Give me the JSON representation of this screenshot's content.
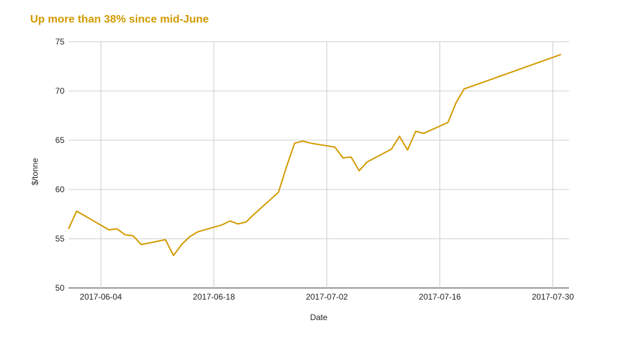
{
  "chart_data": {
    "type": "line",
    "title": "Up more than 38% since mid-June",
    "xlabel": "Date",
    "ylabel": "$/tonne",
    "xlim": [
      "2017-05-31",
      "2017-08-01"
    ],
    "ylim": [
      50,
      75
    ],
    "yticks": [
      50,
      55,
      60,
      65,
      70,
      75
    ],
    "xticks": [
      "2017-06-04",
      "2017-06-18",
      "2017-07-02",
      "2017-07-16",
      "2017-07-30"
    ],
    "grid": true,
    "line_color": "#d29a00",
    "series": [
      {
        "x": [
          "2017-05-31",
          "2017-06-01",
          "2017-06-05",
          "2017-06-06",
          "2017-06-07",
          "2017-06-08",
          "2017-06-09",
          "2017-06-12",
          "2017-06-13",
          "2017-06-14",
          "2017-06-15",
          "2017-06-16",
          "2017-06-19",
          "2017-06-20",
          "2017-06-21",
          "2017-06-22",
          "2017-06-23",
          "2017-06-26",
          "2017-06-27",
          "2017-06-28",
          "2017-06-29",
          "2017-06-30",
          "2017-07-03",
          "2017-07-04",
          "2017-07-05",
          "2017-07-06",
          "2017-07-07",
          "2017-07-10",
          "2017-07-11",
          "2017-07-12",
          "2017-07-13",
          "2017-07-14",
          "2017-07-17",
          "2017-07-18",
          "2017-07-19",
          "2017-07-31"
        ],
        "values": [
          56.0,
          57.8,
          55.9,
          56.0,
          55.4,
          55.3,
          54.4,
          54.9,
          53.3,
          54.4,
          55.2,
          55.7,
          56.4,
          56.8,
          56.5,
          56.7,
          57.5,
          59.7,
          62.3,
          64.7,
          64.9,
          64.7,
          64.3,
          63.2,
          63.3,
          61.9,
          62.8,
          64.1,
          65.4,
          64.0,
          65.9,
          65.7,
          66.8,
          68.8,
          70.2,
          73.7
        ]
      }
    ]
  }
}
